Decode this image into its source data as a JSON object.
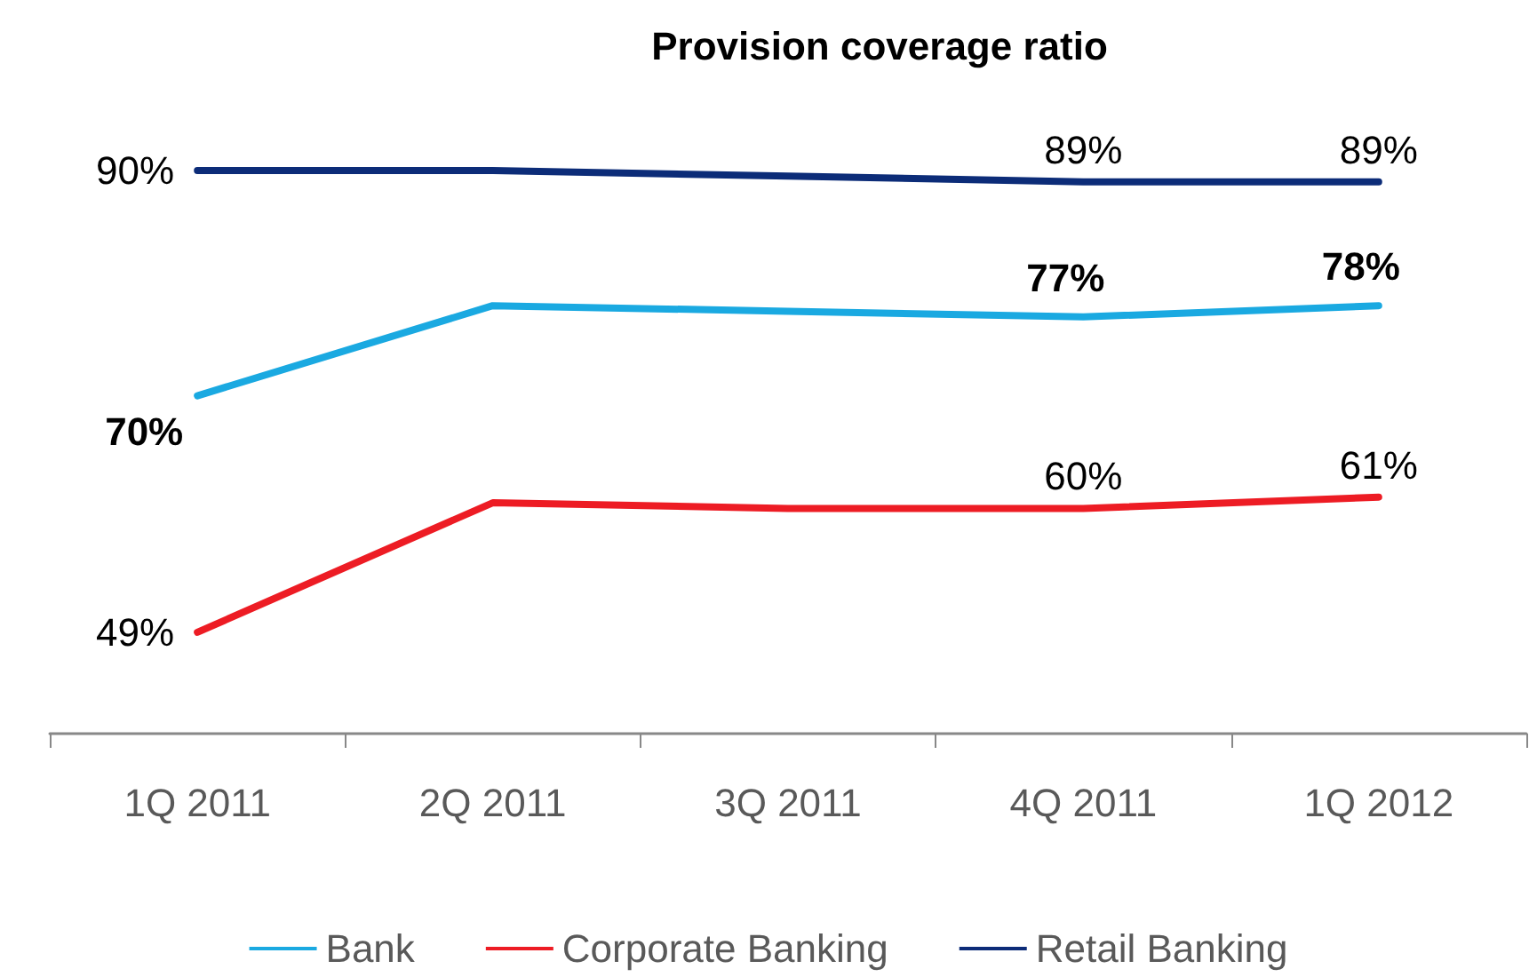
{
  "chart_data": {
    "type": "line",
    "title": "Provision coverage ratio",
    "categories": [
      "1Q 2011",
      "2Q 2011",
      "3Q 2011",
      "4Q 2011",
      "1Q 2012"
    ],
    "series": [
      {
        "name": "Bank",
        "color": "#1aa9e1",
        "values": [
          70,
          78,
          77.5,
          77,
          78
        ],
        "value_labels": [
          "70%",
          null,
          null,
          "77%",
          "78%"
        ]
      },
      {
        "name": "Corporate Banking",
        "color": "#ed1c24",
        "values": [
          49,
          60.5,
          60,
          60,
          61
        ],
        "value_labels": [
          "49%",
          null,
          null,
          "60%",
          "61%"
        ]
      },
      {
        "name": "Retail Banking",
        "color": "#0c2c78",
        "values": [
          90,
          90,
          89.5,
          89,
          89
        ],
        "value_labels": [
          "90%",
          null,
          null,
          "89%",
          "89%"
        ]
      }
    ],
    "legend": "bottom",
    "marker": "none",
    "line_style": "solid"
  }
}
